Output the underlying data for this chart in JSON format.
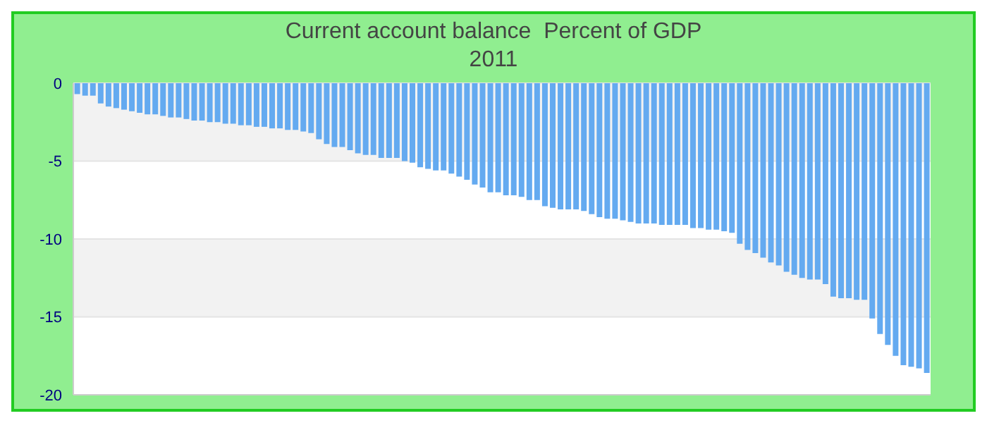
{
  "chart_data": {
    "type": "bar",
    "title": "Current account balance  Percent of GDP",
    "subtitle": "2011",
    "categories": [
      null,
      null,
      null,
      null,
      null,
      null,
      null,
      null,
      null,
      null,
      null,
      null,
      null,
      null,
      null,
      null,
      null,
      null,
      null,
      null,
      null,
      null,
      null,
      null,
      null,
      null,
      null,
      null,
      null,
      null,
      null,
      null,
      null,
      null,
      null,
      null,
      null,
      null,
      null,
      null,
      null,
      null,
      null,
      null,
      null,
      null,
      null,
      null,
      null,
      null,
      null,
      null,
      null,
      null,
      null,
      null,
      null,
      null,
      null,
      null,
      null,
      null,
      null,
      null,
      null,
      null,
      null,
      null,
      null,
      null,
      null,
      null,
      null,
      null,
      null,
      null,
      null,
      null,
      null,
      null,
      null,
      null,
      null,
      null,
      null,
      null,
      null,
      null,
      null,
      null,
      null,
      null,
      null,
      null,
      null,
      null,
      null,
      null,
      null,
      null,
      null,
      null,
      null,
      null,
      null,
      null,
      null,
      null,
      null,
      null
    ],
    "values": [
      -0.7,
      -0.8,
      -0.8,
      -1.3,
      -1.5,
      -1.6,
      -1.7,
      -1.8,
      -1.9,
      -2.0,
      -2.0,
      -2.1,
      -2.2,
      -2.2,
      -2.3,
      -2.4,
      -2.4,
      -2.5,
      -2.5,
      -2.6,
      -2.6,
      -2.7,
      -2.7,
      -2.8,
      -2.8,
      -2.9,
      -2.9,
      -3.0,
      -3.0,
      -3.1,
      -3.2,
      -3.6,
      -3.9,
      -4.1,
      -4.1,
      -4.3,
      -4.5,
      -4.6,
      -4.6,
      -4.8,
      -4.8,
      -4.8,
      -5.0,
      -5.1,
      -5.4,
      -5.5,
      -5.6,
      -5.6,
      -5.8,
      -6.0,
      -6.2,
      -6.5,
      -6.7,
      -7.0,
      -7.0,
      -7.2,
      -7.2,
      -7.3,
      -7.5,
      -7.5,
      -7.9,
      -8.0,
      -8.1,
      -8.1,
      -8.1,
      -8.2,
      -8.4,
      -8.6,
      -8.7,
      -8.7,
      -8.8,
      -8.9,
      -9.0,
      -9.0,
      -9.0,
      -9.1,
      -9.1,
      -9.1,
      -9.1,
      -9.3,
      -9.3,
      -9.4,
      -9.4,
      -9.5,
      -9.6,
      -10.3,
      -10.7,
      -10.9,
      -11.2,
      -11.5,
      -11.7,
      -12.1,
      -12.3,
      -12.5,
      -12.6,
      -12.6,
      -12.9,
      -13.7,
      -13.8,
      -13.8,
      -13.9,
      -13.9,
      -15.1,
      -16.1,
      -16.8,
      -17.5,
      -18.1,
      -18.2,
      -18.3,
      -18.6
    ],
    "color": "#64aaf0",
    "ylim": [
      -20,
      0
    ],
    "yticks": [
      0,
      -5,
      -10,
      -15,
      -20
    ],
    "grid": "y",
    "tick_labels": "y"
  }
}
